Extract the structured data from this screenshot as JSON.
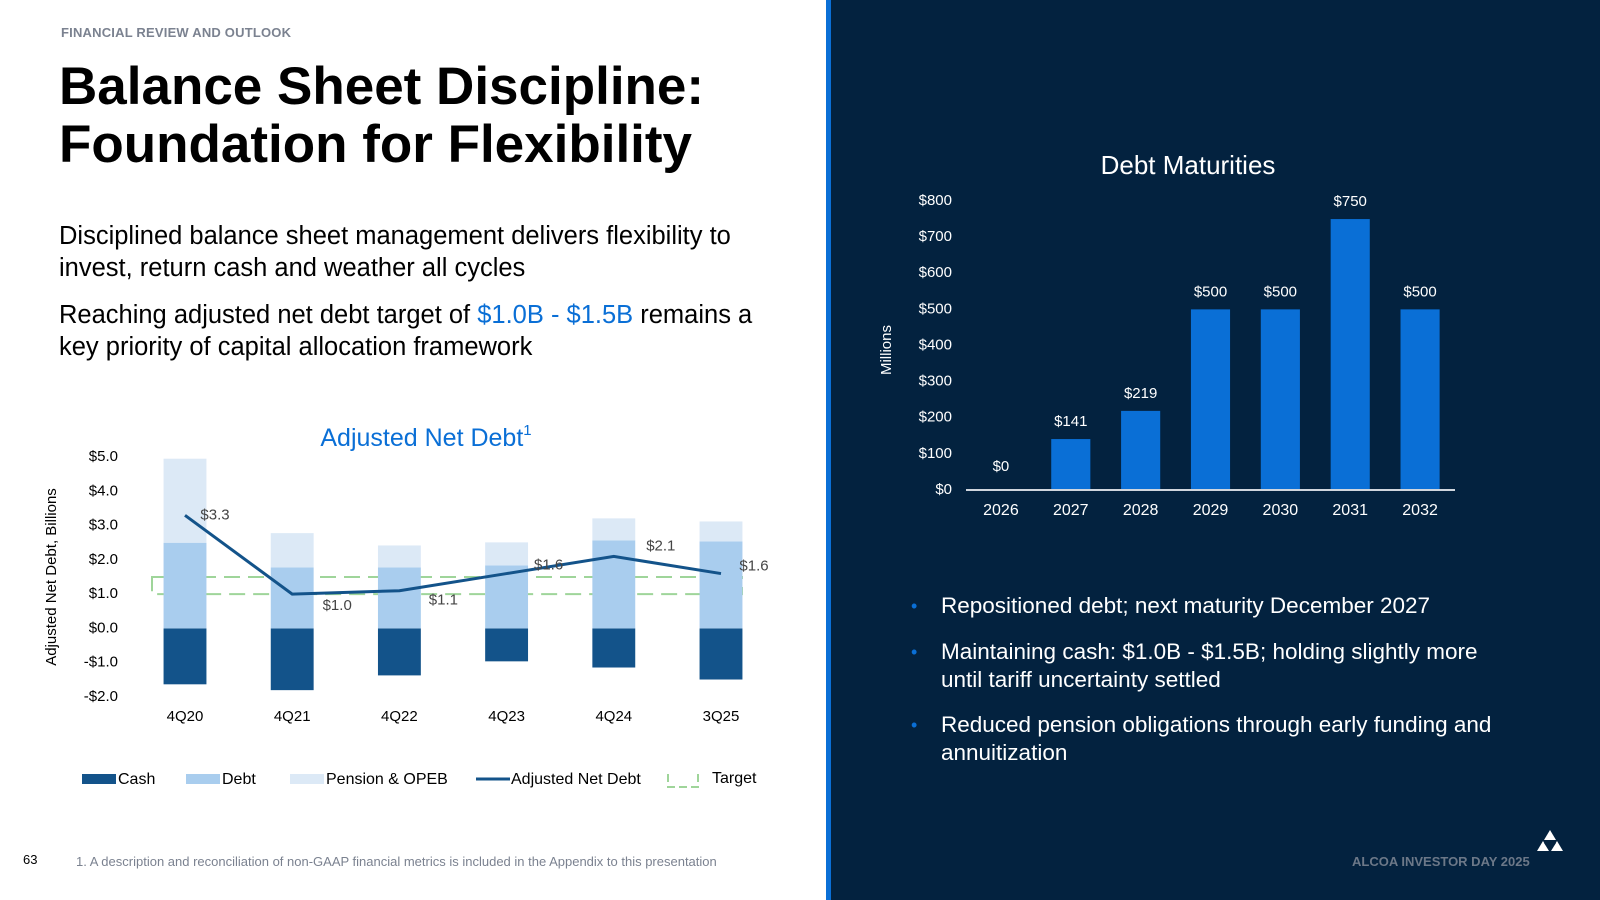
{
  "header": {
    "eyebrow": "FINANCIAL REVIEW AND OUTLOOK",
    "title": [
      "Balance Sheet Discipline:",
      "Foundation for Flexibility"
    ]
  },
  "body": {
    "paragraphs": [
      {
        "parts": [
          "Disciplined balance sheet management delivers flexibility to invest, return cash and weather all cycles"
        ]
      },
      {
        "parts": [
          "Reaching adjusted net debt target of ",
          "$1.0B - $1.5B",
          " remains a key priority of capital allocation framework"
        ]
      }
    ]
  },
  "bullets": [
    "Repositioned debt; next maturity December 2027",
    "Maintaining cash: $1.0B - $1.5B; holding slightly more until tariff uncertainty settled",
    "Reduced pension obligations through early funding and annuitization"
  ],
  "footer": {
    "page": "63",
    "footnote": "1. A description and reconciliation of non-GAAP financial metrics is included in the Appendix to this presentation",
    "brand": "ALCOA INVESTOR DAY 2025"
  },
  "chart_data": [
    {
      "type": "combo",
      "title": "Adjusted Net Debt",
      "title_note": "1",
      "ylabel": "Adjusted Net Debt, Billions",
      "categories": [
        "4Q20",
        "4Q21",
        "4Q22",
        "4Q23",
        "4Q24",
        "3Q25"
      ],
      "ylim": [
        -2,
        5
      ],
      "yticks": [
        {
          "value": 5,
          "label": "$5.0"
        },
        {
          "value": 4,
          "label": "$4.0"
        },
        {
          "value": 3,
          "label": "$3.0"
        },
        {
          "value": 2,
          "label": "$2.0"
        },
        {
          "value": 1,
          "label": "$1.0"
        },
        {
          "value": 0,
          "label": "$0.0"
        },
        {
          "value": -1,
          "label": "-$1.0"
        },
        {
          "value": -2,
          "label": "-$2.0"
        }
      ],
      "series": [
        {
          "name": "Cash",
          "color": "#13538a",
          "values": [
            -1.63,
            -1.8,
            -1.37,
            -0.96,
            -1.14,
            -1.49
          ]
        },
        {
          "name": "Debt",
          "color": "#a9cdee",
          "values": [
            2.5,
            1.78,
            1.78,
            1.84,
            2.57,
            2.54
          ]
        },
        {
          "name": "Pension & OPEB",
          "color": "#dce9f6",
          "values": [
            2.45,
            1.0,
            0.64,
            0.67,
            0.64,
            0.58
          ]
        },
        {
          "name": "Adjusted Net Debt",
          "type": "line",
          "color": "#13538a",
          "values": [
            3.3,
            1.0,
            1.1,
            1.6,
            2.1,
            1.6
          ],
          "value_labels": [
            "$3.3",
            "$1.0",
            "$1.1",
            "$1.6",
            "$2.1",
            "$1.6"
          ]
        }
      ],
      "target": {
        "name": "Target",
        "color": "#9fd59a",
        "low": 1.0,
        "high": 1.5
      }
    },
    {
      "type": "bar",
      "title": "Debt Maturities",
      "ylabel": "Millions",
      "color": "#0a6fd6",
      "categories": [
        "2026",
        "2027",
        "2028",
        "2029",
        "2030",
        "2031",
        "2032"
      ],
      "values": [
        0,
        141,
        219,
        500,
        500,
        750,
        500
      ],
      "value_labels": [
        "$0",
        "$141",
        "$219",
        "$500",
        "$500",
        "$750",
        "$500"
      ],
      "ylim": [
        0,
        800
      ],
      "yticks": [
        {
          "value": 0,
          "label": "$0"
        },
        {
          "value": 100,
          "label": "$100"
        },
        {
          "value": 200,
          "label": "$200"
        },
        {
          "value": 300,
          "label": "$300"
        },
        {
          "value": 400,
          "label": "$400"
        },
        {
          "value": 500,
          "label": "$500"
        },
        {
          "value": 600,
          "label": "$600"
        },
        {
          "value": 700,
          "label": "$700"
        },
        {
          "value": 800,
          "label": "$800"
        }
      ]
    }
  ]
}
